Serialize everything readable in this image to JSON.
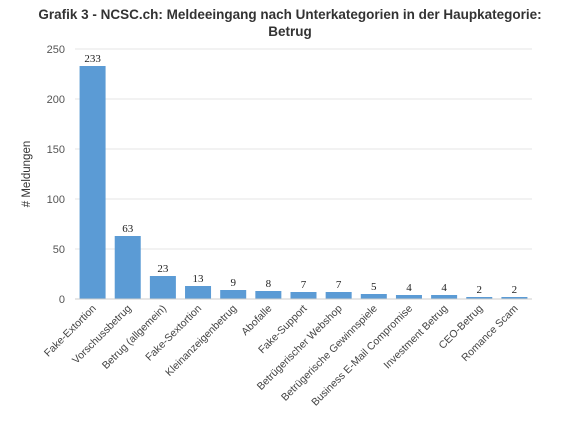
{
  "chart_data": {
    "type": "bar",
    "title_line1": "Grafik 3 - NCSC.ch: Meldeeingang nach Unterkategorien in der Haupkategorie:",
    "title_line2": "Betrug",
    "ylabel": "# Meldungen",
    "xlabel": "",
    "ylim": [
      0,
      250
    ],
    "yticks": [
      "0",
      "50",
      "100",
      "150",
      "200",
      "250"
    ],
    "grid": true,
    "legend": "none",
    "bar_color": "#5b9bd5",
    "categories": [
      "Fake-Extortion",
      "Vorschussbetrug",
      "Betrug (allgemein)",
      "Fake-Sextortion",
      "Kleinanzeigenbetrug",
      "Abofalle",
      "Fake-Support",
      "Betrügerischer Webshop",
      "Betrügerische Gewinnspiele",
      "Business E-Mail Compromise",
      "Investment Betrug",
      "CEO-Betrug",
      "Romance Scam"
    ],
    "values": [
      233,
      63,
      23,
      13,
      9,
      8,
      7,
      7,
      5,
      4,
      4,
      2,
      2
    ]
  }
}
